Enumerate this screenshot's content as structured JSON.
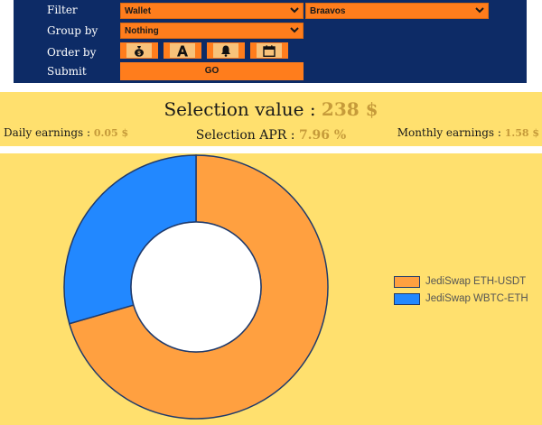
{
  "filters": {
    "filter_label": "Filter",
    "filter_value": "Wallet",
    "filter_second_value": "Braavos",
    "group_label": "Group by",
    "group_value": "Nothing",
    "order_label": "Order by",
    "order_buttons": [
      "money-bag-icon",
      "font-a-icon",
      "bell-icon",
      "calendar-icon"
    ],
    "submit_label": "Submit",
    "go_label": "GO"
  },
  "summary": {
    "selection_value_label": "Selection value : ",
    "selection_value": "238 $",
    "daily_label": "Daily earnings : ",
    "daily_value": "0.05 $",
    "apr_label": "Selection APR : ",
    "apr_value": "7.96 %",
    "monthly_label": "Monthly earnings : ",
    "monthly_value": "1.58 $"
  },
  "colors": {
    "panel": "#0d2b66",
    "accent": "#ff7d1c",
    "band": "#ffe06e",
    "gold_text": "#c69b3a"
  },
  "chart_data": {
    "type": "pie",
    "variant": "doughnut",
    "categories": [
      "JediSwap ETH-USDT",
      "JediSwap WBTC-ETH"
    ],
    "values": [
      70.5,
      29.5
    ],
    "colors": [
      "#ffa040",
      "#2288ff"
    ],
    "legend_position": "right"
  }
}
